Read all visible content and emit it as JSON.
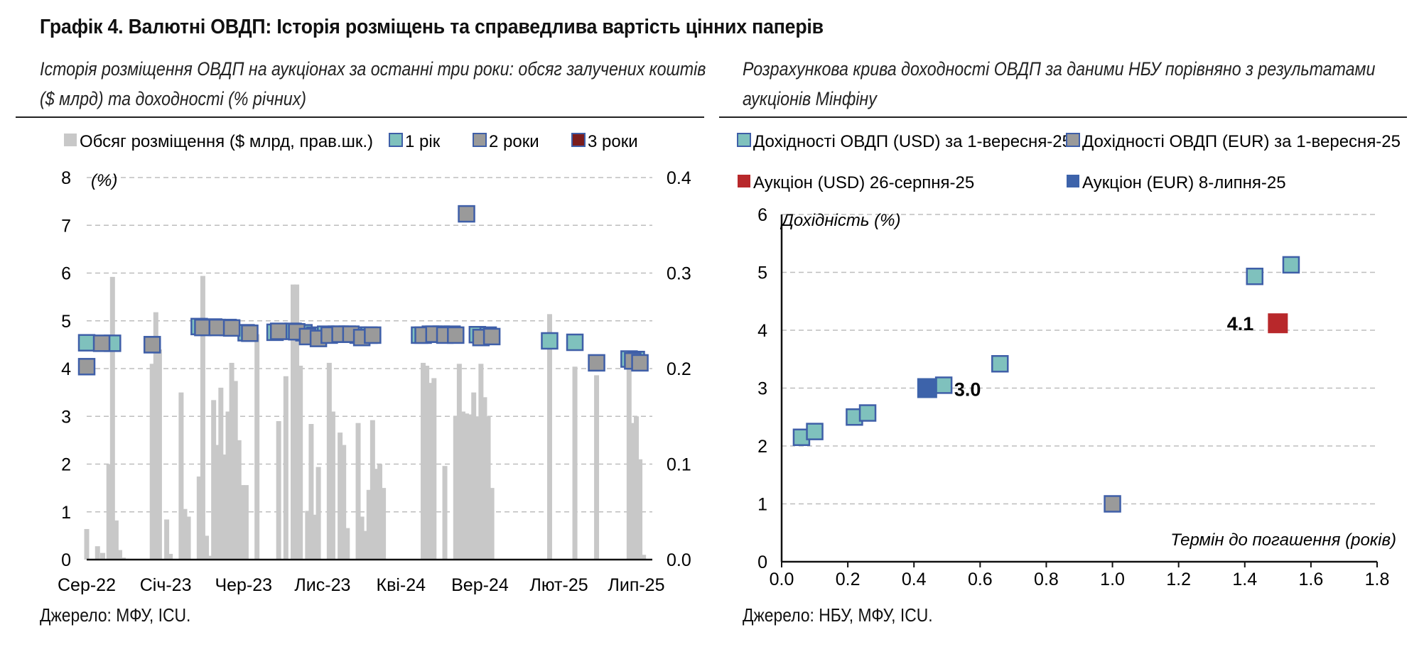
{
  "title": "Графік 4. Валютні ОВДП: Історія розміщень та справедлива вартість цінних паперів",
  "left_subtitle": "Історія розміщення ОВДП на аукціонах за останні три роки: обсяг залучених коштів ($ млрд) та доходності (% річних)",
  "right_subtitle": "Розрахункова крива доходності ОВДП за даними НБУ порівняно з результатами аукціонів Мінфіну",
  "left_source": "Джерело: МФУ, ICU.",
  "right_source": "Джерело: НБУ, МФУ, ICU.",
  "colors": {
    "bar": "#c8c8c8",
    "usd_1y": "#7fc1bd",
    "eur_2y": "#9a9a9a",
    "year3": "#7b1c1c",
    "auction_usd": "#b8282b",
    "auction_eur": "#3d63aa",
    "marker_border": "#3f5fa8"
  },
  "chart_data": [
    {
      "type": "bar+scatter",
      "unit_label": "(%)",
      "legend": [
        "Обсяг розміщення ($ млрд, прав.шк.)",
        "1 рік",
        "2 роки",
        "3 роки"
      ],
      "legend_placement": "top",
      "x_tick_labels": [
        "Сер-22",
        "Січ-23",
        "Чер-23",
        "Лис-23",
        "Кві-24",
        "Вер-24",
        "Лют-25",
        "Лип-25"
      ],
      "x_range": [
        "2022-08",
        "2025-08"
      ],
      "ylim_left": [
        0,
        8
      ],
      "yticks_left": [
        "0",
        "1",
        "2",
        "3",
        "4",
        "5",
        "6",
        "7",
        "8"
      ],
      "ylim_right": [
        0,
        0.4
      ],
      "yticks_right": [
        "0.0",
        "0.1",
        "0.2",
        "0.3",
        "0.4"
      ],
      "grid": true,
      "bars": {
        "name": "Обсяг розміщення ($ млрд, прав.шк.)",
        "x": [
          "2022-08-01",
          "2022-08-22",
          "2022-09-01",
          "2022-09-13",
          "2022-09-20",
          "2022-09-27",
          "2022-10-04",
          "2022-10-11",
          "2022-10-18",
          "2022-12-06",
          "2022-12-13",
          "2022-12-20",
          "2023-01-03",
          "2023-01-10",
          "2023-01-31",
          "2023-02-07",
          "2023-02-14",
          "2023-03-07",
          "2023-03-14",
          "2023-03-21",
          "2023-03-28",
          "2023-04-04",
          "2023-04-11",
          "2023-04-18",
          "2023-04-25",
          "2023-05-02",
          "2023-05-09",
          "2023-05-16",
          "2023-05-23",
          "2023-05-30",
          "2023-06-06",
          "2023-06-27",
          "2023-08-08",
          "2023-08-22",
          "2023-09-05",
          "2023-09-12",
          "2023-09-19",
          "2023-10-03",
          "2023-10-10",
          "2023-10-17",
          "2023-10-24",
          "2023-11-14",
          "2023-11-21",
          "2023-12-05",
          "2023-12-12",
          "2023-12-19",
          "2024-01-09",
          "2024-01-16",
          "2024-01-23",
          "2024-01-30",
          "2024-02-06",
          "2024-02-13",
          "2024-02-20",
          "2024-02-27",
          "2024-05-14",
          "2024-05-21",
          "2024-05-28",
          "2024-06-04",
          "2024-06-25",
          "2024-07-16",
          "2024-07-23",
          "2024-07-30",
          "2024-08-06",
          "2024-08-13",
          "2024-08-20",
          "2024-08-27",
          "2024-09-03",
          "2024-09-10",
          "2024-09-17",
          "2024-09-24",
          "2025-01-14",
          "2025-03-04",
          "2025-04-15",
          "2025-06-17",
          "2025-06-24",
          "2025-07-01",
          "2025-07-08",
          "2025-07-15"
        ],
        "values": [
          0.032,
          0.014,
          0.007,
          0.1,
          0.296,
          0.041,
          0.01,
          0.002,
          0.001,
          0.205,
          0.259,
          0.22,
          0.042,
          0.006,
          0.175,
          0.053,
          0.045,
          0.087,
          0.297,
          0.025,
          0.004,
          0.167,
          0.12,
          0.18,
          0.11,
          0.155,
          0.206,
          0.187,
          0.125,
          0.078,
          0.078,
          0.236,
          0.145,
          0.192,
          0.288,
          0.288,
          0.203,
          0.051,
          0.142,
          0.047,
          0.097,
          0.206,
          0.155,
          0.133,
          0.12,
          0.033,
          0.143,
          0.045,
          0.03,
          0.073,
          0.146,
          0.095,
          0.1,
          0.075,
          0.206,
          0.203,
          0.185,
          0.19,
          0.098,
          0.15,
          0.205,
          0.155,
          0.153,
          0.152,
          0.175,
          0.15,
          0.205,
          0.17,
          0.15,
          0.075,
          0.257,
          0.202,
          0.193,
          0.21,
          0.143,
          0.15,
          0.105,
          0.005
        ]
      },
      "series": [
        {
          "name": "1 рік",
          "x": [
            "2022-08-01",
            "2022-09-20",
            "2022-12-06",
            "2023-03-07",
            "2023-04-04",
            "2023-05-02",
            "2023-06-06",
            "2023-08-01",
            "2023-09-05",
            "2023-09-26",
            "2023-10-17",
            "2023-11-07",
            "2023-11-28",
            "2023-12-19",
            "2024-01-09",
            "2024-01-30",
            "2024-05-07",
            "2024-05-28",
            "2024-06-18",
            "2024-07-09",
            "2024-08-27",
            "2024-09-17",
            "2025-01-14",
            "2025-03-04",
            "2025-06-17",
            "2025-07-01"
          ],
          "y": [
            4.54,
            4.53,
            4.5,
            4.88,
            4.87,
            4.86,
            4.75,
            4.76,
            4.78,
            4.75,
            4.7,
            4.72,
            4.72,
            4.72,
            4.7,
            4.7,
            4.7,
            4.72,
            4.72,
            4.72,
            4.71,
            4.7,
            4.58,
            4.55,
            4.2,
            4.19
          ]
        },
        {
          "name": "2 роки",
          "x": [
            "2022-08-01",
            "2022-08-30",
            "2022-12-06",
            "2023-03-14",
            "2023-04-11",
            "2023-05-09",
            "2023-06-13",
            "2023-08-08",
            "2023-09-12",
            "2023-10-03",
            "2023-10-24",
            "2023-11-14",
            "2023-12-05",
            "2023-12-26",
            "2024-01-16",
            "2024-02-06",
            "2024-05-14",
            "2024-06-04",
            "2024-06-25",
            "2024-07-16",
            "2024-08-06",
            "2024-09-03",
            "2024-09-24",
            "2025-04-15",
            "2025-06-24",
            "2025-07-08"
          ],
          "y": [
            4.04,
            4.53,
            4.5,
            4.86,
            4.86,
            4.85,
            4.74,
            4.78,
            4.77,
            4.67,
            4.63,
            4.7,
            4.72,
            4.72,
            4.65,
            4.7,
            4.7,
            4.72,
            4.7,
            4.7,
            7.24,
            4.65,
            4.67,
            4.12,
            4.16,
            4.12
          ]
        },
        {
          "name": "3 роки",
          "x": [],
          "y": []
        }
      ]
    },
    {
      "type": "scatter",
      "xlabel": "Термін до погашення (років)",
      "ylabel": "Дохідність (%)",
      "xlim": [
        0,
        1.8
      ],
      "ylim": [
        0,
        6
      ],
      "xticks": [
        "0.0",
        "0.2",
        "0.4",
        "0.6",
        "0.8",
        "1.0",
        "1.2",
        "1.4",
        "1.6",
        "1.8"
      ],
      "yticks": [
        "0",
        "1",
        "2",
        "3",
        "4",
        "5",
        "6"
      ],
      "grid": true,
      "legend_placement": "top",
      "series": [
        {
          "name": "Дохідності ОВДП (USD) за 1-вересня-25",
          "x": [
            0.06,
            0.1,
            0.22,
            0.26,
            0.49,
            0.66,
            1.43,
            1.54
          ],
          "y": [
            2.15,
            2.25,
            2.5,
            2.57,
            3.05,
            3.42,
            4.93,
            5.13
          ]
        },
        {
          "name": "Дохідності ОВДП (EUR) за 1-вересня-25",
          "x": [
            1.0
          ],
          "y": [
            1.0
          ]
        },
        {
          "name": "Аукціон (USD) 26-серпня-25",
          "x": [
            1.5
          ],
          "y": [
            4.12
          ],
          "label": "4.1"
        },
        {
          "name": "Аукціон (EUR) 8-липня-25",
          "x": [
            0.44
          ],
          "y": [
            3.0
          ],
          "label": "3.0"
        }
      ]
    }
  ]
}
